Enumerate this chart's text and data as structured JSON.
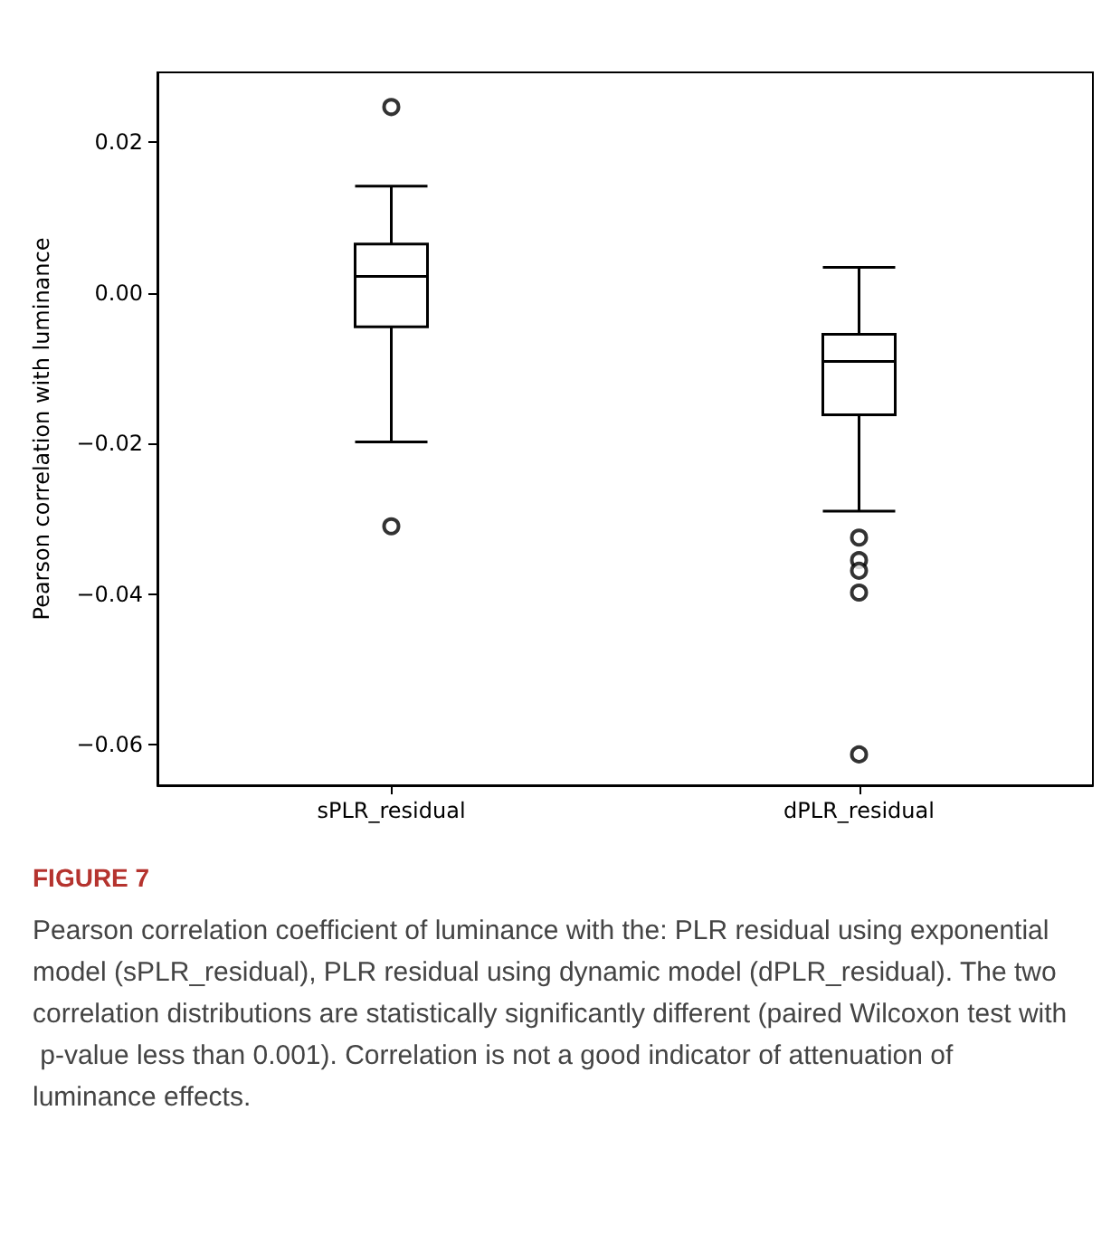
{
  "chart_data": {
    "type": "box",
    "ylabel": "Pearson correlation with luminance",
    "categories": [
      "sPLR_residual",
      "dPLR_residual"
    ],
    "color": "#000000",
    "boxes": [
      {
        "low": -0.0198,
        "q1": -0.0045,
        "median": 0.0022,
        "q3": 0.0065,
        "high": 0.0142,
        "outliers": [
          0.0247,
          -0.031
        ]
      },
      {
        "low": -0.029,
        "q1": -0.0162,
        "median": -0.0091,
        "q3": -0.0055,
        "high": 0.0034,
        "outliers": [
          -0.0325,
          -0.0355,
          -0.0369,
          -0.0398,
          -0.0613
        ]
      }
    ],
    "ylim": [
      -0.0654,
      0.0293
    ],
    "yticks": [
      {
        "value": -0.06,
        "label": "−0.06"
      },
      {
        "value": -0.04,
        "label": "−0.04"
      },
      {
        "value": -0.02,
        "label": "−0.02"
      },
      {
        "value": 0,
        "label": "0.00"
      },
      {
        "value": 0.02,
        "label": "0.02"
      }
    ],
    "grid": false,
    "annotations": [
      "FIGURE 7",
      "Pearson correlation coefficient of luminance with the: PLR residual using exponential model (sPLR_residual), PLR residual using dynamic model (dPLR_residual). The two correlation distributions are statistically significantly different (paired Wilcoxon test with p-value less than 0.001). Correlation is not a good indicator of attenuation of luminance effects."
    ]
  }
}
